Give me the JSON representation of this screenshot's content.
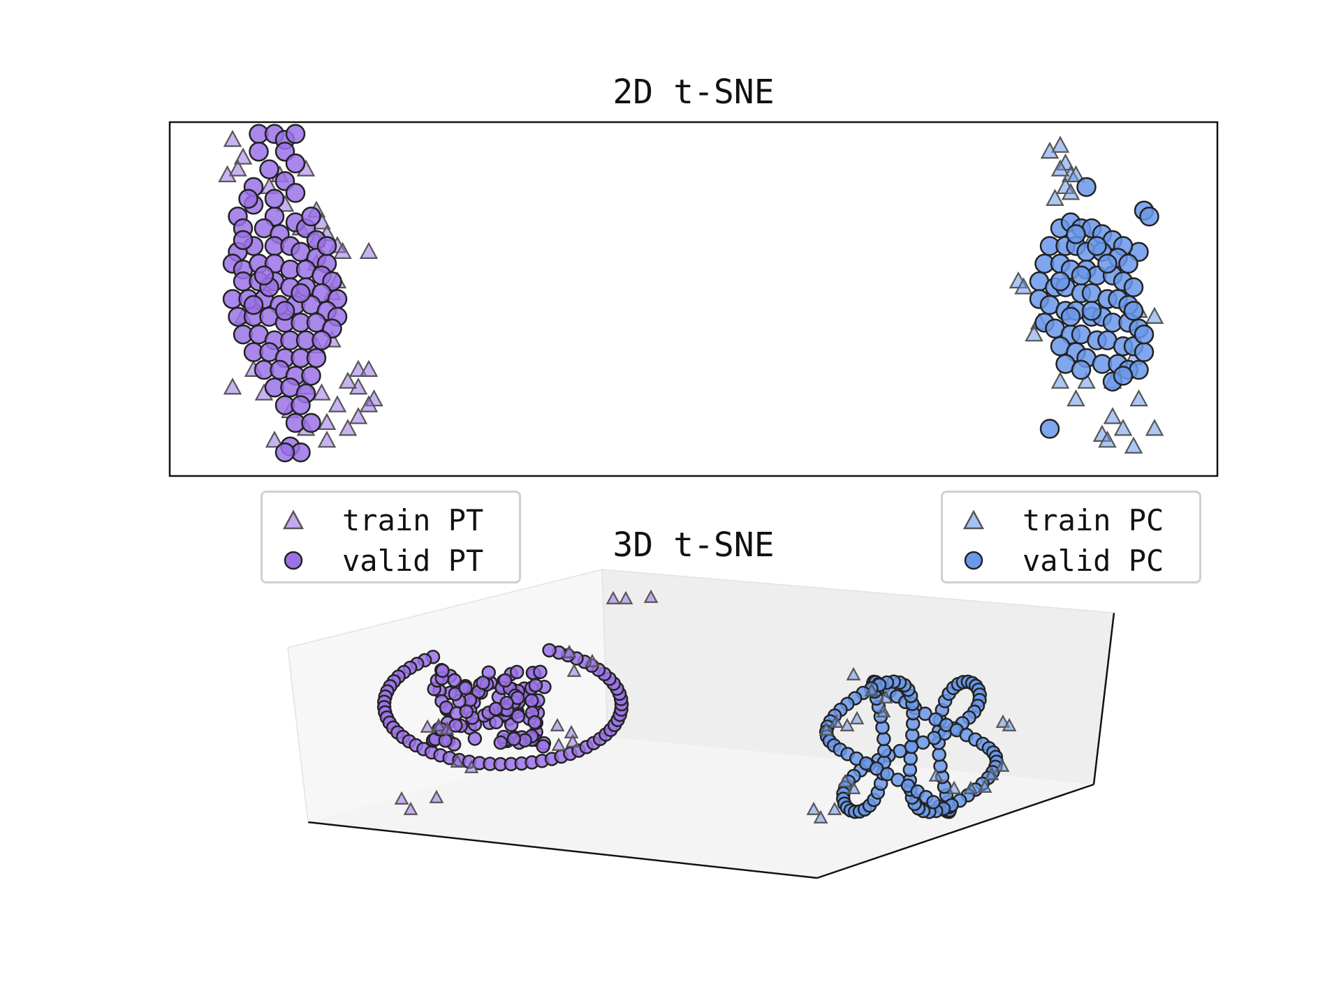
{
  "colors": {
    "pt": "#9b72e6",
    "pc": "#6a98ea",
    "edge": "#222222",
    "pane": "#f2f2f2"
  },
  "chart_data": [
    {
      "type": "scatter",
      "title": "2D t-SNE",
      "grid": false,
      "axes_visible": false,
      "legends": [
        {
          "placement": "below-left",
          "entries": [
            {
              "label": "train PT",
              "marker": "triangle"
            },
            {
              "label": "valid PT",
              "marker": "circle"
            }
          ]
        },
        {
          "placement": "below-right",
          "entries": [
            {
              "label": "train PC",
              "marker": "triangle"
            },
            {
              "label": "valid PC",
              "marker": "circle"
            }
          ]
        }
      ],
      "xlim": [
        -100,
        100
      ],
      "ylim": [
        -30,
        30
      ],
      "series": [
        {
          "name": "train PT",
          "marker": "triangle",
          "color": "#9b72e6",
          "points": [
            [
              -88,
              27
            ],
            [
              -86,
              24
            ],
            [
              -87,
              22
            ],
            [
              -89,
              21
            ],
            [
              -74,
              22
            ],
            [
              -79,
              21
            ],
            [
              -81,
              19
            ],
            [
              -78,
              16
            ],
            [
              -72,
              15
            ],
            [
              -71,
              13
            ],
            [
              -70,
              11
            ],
            [
              -68,
              9
            ],
            [
              -67,
              8
            ],
            [
              -72,
              10
            ],
            [
              -75,
              12
            ],
            [
              -62,
              8
            ],
            [
              -72,
              6
            ],
            [
              -68,
              3
            ],
            [
              -69,
              1
            ],
            [
              -84,
              -1
            ],
            [
              -86,
              -3
            ],
            [
              -72,
              -8
            ],
            [
              -69,
              -7
            ],
            [
              -64,
              -12
            ],
            [
              -62,
              -12
            ],
            [
              -64,
              -15
            ],
            [
              -66,
              -14
            ],
            [
              -61,
              -17
            ],
            [
              -71,
              -16
            ],
            [
              -74,
              -15
            ],
            [
              -68,
              -18
            ],
            [
              -70,
              -21
            ],
            [
              -74,
              -22
            ],
            [
              -70,
              -24
            ],
            [
              -66,
              -22
            ],
            [
              -62,
              -18
            ],
            [
              -64,
              -20
            ],
            [
              -88,
              -15
            ],
            [
              -82,
              -16
            ],
            [
              -84,
              -12
            ],
            [
              -80,
              -24
            ],
            [
              -77,
              -19
            ]
          ]
        },
        {
          "name": "valid PT",
          "marker": "circle",
          "color": "#9b72e6",
          "points": [
            [
              -83,
              28
            ],
            [
              -80,
              28
            ],
            [
              -78,
              27
            ],
            [
              -76,
              28
            ],
            [
              -78,
              25
            ],
            [
              -76,
              23
            ],
            [
              -78,
              20
            ],
            [
              -81,
              22
            ],
            [
              -84,
              19
            ],
            [
              -76,
              18
            ],
            [
              -80,
              14
            ],
            [
              -84,
              16
            ],
            [
              -87,
              14
            ],
            [
              -86,
              12
            ],
            [
              -82,
              12
            ],
            [
              -79,
              11
            ],
            [
              -76,
              13
            ],
            [
              -74,
              12
            ],
            [
              -72,
              10
            ],
            [
              -84,
              9
            ],
            [
              -80,
              9
            ],
            [
              -77,
              9
            ],
            [
              -75,
              8
            ],
            [
              -72,
              7
            ],
            [
              -70,
              6
            ],
            [
              -87,
              8
            ],
            [
              -88,
              6
            ],
            [
              -86,
              5
            ],
            [
              -83,
              6
            ],
            [
              -80,
              6
            ],
            [
              -77,
              5
            ],
            [
              -74,
              5
            ],
            [
              -71,
              4
            ],
            [
              -69,
              3
            ],
            [
              -86,
              3
            ],
            [
              -83,
              3
            ],
            [
              -80,
              3
            ],
            [
              -77,
              2
            ],
            [
              -74,
              2
            ],
            [
              -71,
              1
            ],
            [
              -68,
              0
            ],
            [
              -88,
              0
            ],
            [
              -85,
              0
            ],
            [
              -82,
              0
            ],
            [
              -79,
              -1
            ],
            [
              -76,
              -1
            ],
            [
              -73,
              -1
            ],
            [
              -70,
              -2
            ],
            [
              -68,
              -3
            ],
            [
              -87,
              -3
            ],
            [
              -84,
              -3
            ],
            [
              -81,
              -3
            ],
            [
              -78,
              -4
            ],
            [
              -75,
              -4
            ],
            [
              -72,
              -4
            ],
            [
              -69,
              -5
            ],
            [
              -86,
              -6
            ],
            [
              -83,
              -6
            ],
            [
              -80,
              -7
            ],
            [
              -77,
              -7
            ],
            [
              -74,
              -7
            ],
            [
              -71,
              -7
            ],
            [
              -84,
              -9
            ],
            [
              -81,
              -9
            ],
            [
              -78,
              -10
            ],
            [
              -75,
              -10
            ],
            [
              -72,
              -10
            ],
            [
              -82,
              -12
            ],
            [
              -79,
              -12
            ],
            [
              -76,
              -13
            ],
            [
              -73,
              -13
            ],
            [
              -80,
              -15
            ],
            [
              -77,
              -15
            ],
            [
              -74,
              -16
            ],
            [
              -78,
              -18
            ],
            [
              -75,
              -18
            ],
            [
              -76,
              -21
            ],
            [
              -73,
              -21
            ],
            [
              -77,
              -25
            ],
            [
              -75,
              -26
            ],
            [
              -78,
              -26
            ],
            [
              -81,
              2
            ],
            [
              -78,
              -2
            ],
            [
              -75,
              1
            ],
            [
              -84,
              -1
            ],
            [
              -82,
              4
            ],
            [
              -86,
              10
            ],
            [
              -70,
              9
            ],
            [
              -73,
              14
            ],
            [
              -83,
              25
            ],
            [
              -80,
              17
            ],
            [
              -85,
              17
            ]
          ]
        },
        {
          "name": "train PC",
          "marker": "triangle",
          "color": "#6a98ea",
          "points": [
            [
              70,
              26
            ],
            [
              68,
              25
            ],
            [
              71,
              23
            ],
            [
              72,
              21
            ],
            [
              70,
              22
            ],
            [
              73,
              21
            ],
            [
              71,
              19
            ],
            [
              72,
              18
            ],
            [
              69,
              17
            ],
            [
              76,
              10
            ],
            [
              62,
              3
            ],
            [
              63,
              2
            ],
            [
              66,
              -4
            ],
            [
              65,
              -6
            ],
            [
              70,
              -14
            ],
            [
              75,
              -14
            ],
            [
              80,
              -14
            ],
            [
              80,
              -20
            ],
            [
              85,
              -17
            ],
            [
              82,
              -22
            ],
            [
              78,
              -23
            ],
            [
              84,
              -25
            ],
            [
              79,
              -24
            ],
            [
              85,
              -2
            ],
            [
              88,
              -3
            ],
            [
              84,
              -10
            ],
            [
              88,
              -22
            ],
            [
              73,
              -17
            ]
          ]
        },
        {
          "name": "valid PC",
          "marker": "circle",
          "color": "#6a98ea",
          "points": [
            [
              75,
              19
            ],
            [
              86,
              15
            ],
            [
              87,
              14
            ],
            [
              85,
              8
            ],
            [
              70,
              12
            ],
            [
              72,
              13
            ],
            [
              74,
              12
            ],
            [
              76,
              12
            ],
            [
              78,
              11
            ],
            [
              80,
              10
            ],
            [
              82,
              9
            ],
            [
              68,
              9
            ],
            [
              71,
              9
            ],
            [
              73,
              9
            ],
            [
              75,
              8
            ],
            [
              78,
              8
            ],
            [
              81,
              7
            ],
            [
              83,
              6
            ],
            [
              67,
              6
            ],
            [
              70,
              6
            ],
            [
              72,
              5
            ],
            [
              75,
              5
            ],
            [
              77,
              4
            ],
            [
              80,
              4
            ],
            [
              82,
              3
            ],
            [
              84,
              2
            ],
            [
              66,
              3
            ],
            [
              69,
              2
            ],
            [
              71,
              2
            ],
            [
              74,
              1
            ],
            [
              76,
              1
            ],
            [
              79,
              0
            ],
            [
              81,
              0
            ],
            [
              83,
              -1
            ],
            [
              66,
              0
            ],
            [
              68,
              -1
            ],
            [
              71,
              -2
            ],
            [
              73,
              -2
            ],
            [
              76,
              -3
            ],
            [
              78,
              -3
            ],
            [
              80,
              -4
            ],
            [
              83,
              -4
            ],
            [
              85,
              -5
            ],
            [
              67,
              -4
            ],
            [
              69,
              -5
            ],
            [
              72,
              -6
            ],
            [
              74,
              -6
            ],
            [
              77,
              -7
            ],
            [
              79,
              -7
            ],
            [
              82,
              -8
            ],
            [
              84,
              -8
            ],
            [
              86,
              -9
            ],
            [
              70,
              -8
            ],
            [
              73,
              -9
            ],
            [
              75,
              -10
            ],
            [
              78,
              -11
            ],
            [
              81,
              -11
            ],
            [
              83,
              -12
            ],
            [
              85,
              -12
            ],
            [
              71,
              -11
            ],
            [
              74,
              -12
            ],
            [
              80,
              -14
            ],
            [
              82,
              -13
            ],
            [
              68,
              -22
            ],
            [
              76,
              -2
            ],
            [
              74,
              4
            ],
            [
              79,
              6
            ],
            [
              72,
              -3
            ],
            [
              84,
              -2
            ],
            [
              86,
              -6
            ],
            [
              70,
              3
            ],
            [
              77,
              9
            ],
            [
              73,
              11
            ]
          ]
        }
      ]
    },
    {
      "type": "scatter",
      "title": "3D t-SNE",
      "grid": false,
      "projection": "3d",
      "series": [
        {
          "name": "train PT",
          "marker": "triangle",
          "color": "#9b72e6"
        },
        {
          "name": "valid PT",
          "marker": "circle",
          "color": "#9b72e6"
        },
        {
          "name": "train PC",
          "marker": "triangle",
          "color": "#6a98ea"
        },
        {
          "name": "valid PC",
          "marker": "circle",
          "color": "#6a98ea"
        }
      ]
    }
  ]
}
